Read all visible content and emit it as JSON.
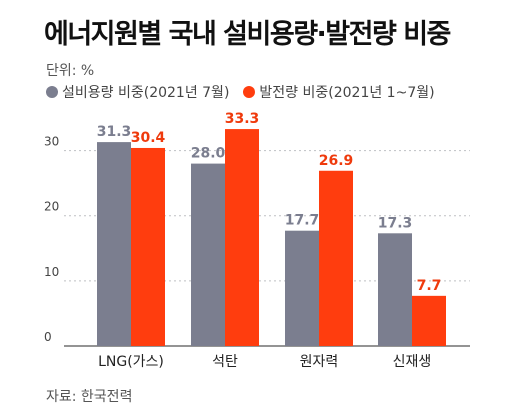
{
  "title": "에너지원별 국내 설비용량·발전량 비중",
  "unit_label": "단위: %",
  "source": "자료: 한국전력",
  "colors": {
    "capacity": "#7b7e8f",
    "generation": "#ff3d0e",
    "capacity_label": "#7b7e8f",
    "generation_label": "#ef3a0c"
  },
  "chart_data": {
    "type": "bar",
    "categories": [
      "LNG(가스)",
      "석탄",
      "원자력",
      "신재생"
    ],
    "series": [
      {
        "name": "설비용량 비중(2021년 7월)",
        "values": [
          31.3,
          28.0,
          17.7,
          17.3
        ]
      },
      {
        "name": "발전량 비중(2021년 1~7월)",
        "values": [
          30.4,
          33.3,
          26.9,
          7.7
        ]
      }
    ],
    "value_labels": [
      [
        "31.3",
        "28.0",
        "17.7",
        "17.3"
      ],
      [
        "30.4",
        "33.3",
        "26.9",
        "7.7"
      ]
    ],
    "yticks": [
      "0",
      "10",
      "20",
      "30"
    ],
    "ylim": [
      0,
      35
    ]
  }
}
